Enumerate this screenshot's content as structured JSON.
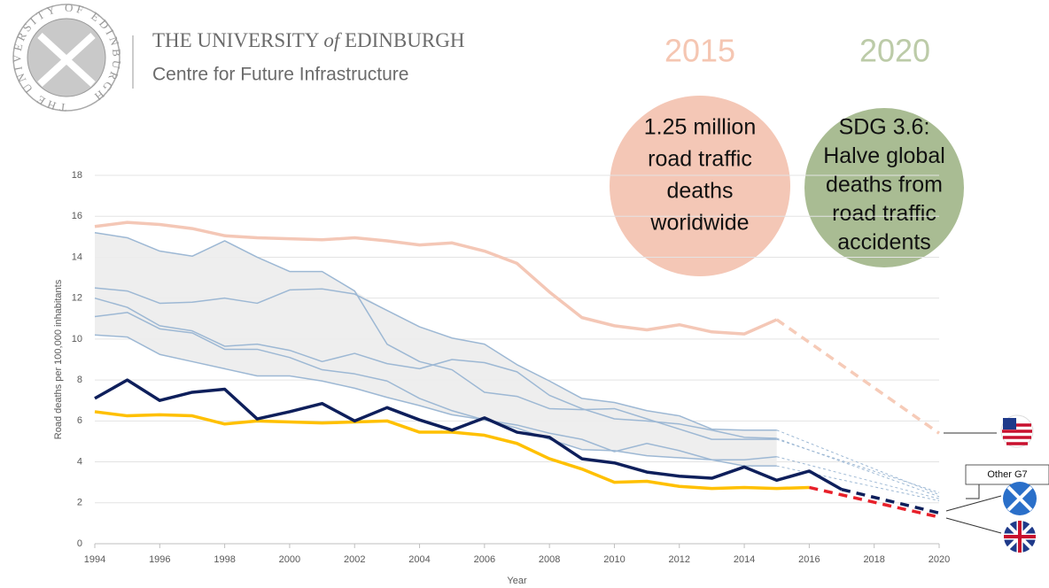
{
  "header": {
    "seal_text": "THE UNIVERSITY OF EDINBURGH",
    "university": [
      "THE UNIVERSITY",
      "of",
      "EDINBURGH"
    ],
    "subtitle": "Centre for Future Infrastructure"
  },
  "bubbles": [
    {
      "year": "2015",
      "lines": [
        "1.25 million",
        "road traffic",
        "deaths",
        "worldwide"
      ],
      "color": "#f4c7b6",
      "year_color": "#f5c6b2"
    },
    {
      "year": "2020",
      "lines": [
        "SDG 3.6:",
        "Halve global",
        "deaths from",
        "road traffic",
        "accidents"
      ],
      "color": "#a9bc93",
      "year_color": "#bccba8"
    }
  ],
  "chart_data": {
    "type": "line",
    "x_label": "Year",
    "y_label": "Road deaths per 100,000 inhabitants",
    "x": [
      1994,
      1995,
      1996,
      1997,
      1998,
      1999,
      2000,
      2001,
      2002,
      2003,
      2004,
      2005,
      2006,
      2007,
      2008,
      2009,
      2010,
      2011,
      2012,
      2013,
      2014,
      2015,
      2016,
      2017,
      2018,
      2019,
      2020
    ],
    "xlim": [
      1994,
      2020
    ],
    "xticks": [
      1994,
      1996,
      1998,
      2000,
      2002,
      2004,
      2006,
      2008,
      2010,
      2012,
      2014,
      2016,
      2018,
      2020
    ],
    "ylim": [
      0,
      18
    ],
    "yticks": [
      0,
      2,
      4,
      6,
      8,
      10,
      12,
      14,
      16,
      18
    ],
    "grid": true,
    "annotation": "Other G7",
    "series": [
      {
        "color": "#9db8d4",
        "band": true,
        "values": [
          15.2,
          14.95,
          14.3,
          14.05,
          14.8,
          14.0,
          13.3,
          13.3,
          12.35,
          9.75,
          8.9,
          8.5,
          7.4,
          7.2,
          6.6,
          6.55,
          6.6,
          6.1,
          5.6,
          5.1,
          5.1,
          5.1,
          null,
          null,
          null,
          null,
          null
        ],
        "projection": {
          "x": [
            2015,
            2020
          ],
          "values": [
            5.1,
            2.5
          ],
          "color": "#9db8d4",
          "style": "dotted"
        }
      },
      {
        "color": "#9db8d4",
        "band": true,
        "values": [
          12.5,
          12.35,
          11.75,
          11.8,
          12.0,
          11.75,
          12.4,
          12.45,
          12.2,
          11.4,
          10.6,
          10.05,
          9.75,
          8.75,
          7.95,
          7.1,
          6.9,
          6.5,
          6.25,
          5.6,
          5.55,
          5.55,
          null,
          null,
          null,
          null,
          null
        ],
        "projection": {
          "x": [
            2015,
            2020
          ],
          "values": [
            5.55,
            2.4
          ],
          "color": "#9db8d4",
          "style": "dotted"
        }
      },
      {
        "color": "#9db8d4",
        "band": true,
        "values": [
          12.0,
          11.55,
          10.65,
          10.4,
          9.65,
          9.75,
          9.45,
          8.9,
          9.3,
          8.8,
          8.55,
          9.0,
          8.85,
          8.4,
          7.25,
          6.6,
          6.1,
          6.0,
          5.85,
          5.55,
          5.2,
          5.15,
          null,
          null,
          null,
          null,
          null
        ],
        "projection": {
          "x": [
            2015,
            2020
          ],
          "values": [
            5.15,
            2.3
          ],
          "color": "#9db8d4",
          "style": "dotted"
        }
      },
      {
        "color": "#9db8d4",
        "band": true,
        "values": [
          11.1,
          11.3,
          10.5,
          10.3,
          9.5,
          9.5,
          9.1,
          8.5,
          8.3,
          7.95,
          7.1,
          6.5,
          6.05,
          5.8,
          5.4,
          5.1,
          4.5,
          4.9,
          4.55,
          4.1,
          4.1,
          4.25,
          null,
          null,
          null,
          null,
          null
        ],
        "projection": {
          "x": [
            2015,
            2020
          ],
          "values": [
            4.25,
            2.2
          ],
          "color": "#9db8d4",
          "style": "dotted"
        }
      },
      {
        "color": "#9db8d4",
        "band": true,
        "values": [
          10.2,
          10.1,
          9.25,
          8.9,
          8.55,
          8.2,
          8.2,
          7.95,
          7.6,
          7.15,
          6.75,
          6.3,
          6.05,
          5.65,
          5.1,
          4.6,
          4.55,
          4.3,
          4.2,
          4.1,
          3.8,
          3.8,
          null,
          null,
          null,
          null,
          null
        ],
        "projection": {
          "x": [
            2015,
            2020
          ],
          "values": [
            3.8,
            2.1
          ],
          "color": "#9db8d4",
          "style": "dotted"
        }
      },
      {
        "color": "#f4c7b6",
        "values": [
          15.5,
          15.7,
          15.6,
          15.4,
          15.05,
          14.95,
          14.9,
          14.85,
          14.95,
          14.8,
          14.6,
          14.7,
          14.3,
          13.7,
          12.3,
          11.05,
          10.65,
          10.45,
          10.7,
          10.35,
          10.25,
          10.95,
          null,
          null,
          null,
          null,
          null
        ],
        "projection": {
          "x": [
            2015,
            2020
          ],
          "values": [
            10.95,
            5.4
          ],
          "color": "#f6cbb8",
          "style": "dashed"
        }
      },
      {
        "color": "#ffc000",
        "values": [
          6.45,
          6.25,
          6.3,
          6.25,
          5.85,
          6.0,
          5.95,
          5.9,
          5.95,
          6.0,
          5.45,
          5.45,
          5.3,
          4.9,
          4.15,
          3.65,
          3.0,
          3.05,
          2.8,
          2.7,
          2.75,
          2.7,
          2.75,
          null,
          null,
          null,
          null
        ],
        "projection": {
          "x": [
            2016,
            2020
          ],
          "values": [
            2.75,
            1.3
          ],
          "color": "#e8202a",
          "style": "dashed"
        }
      },
      {
        "color": "#0e1f5b",
        "values": [
          7.1,
          8.0,
          7.0,
          7.4,
          7.55,
          6.1,
          6.45,
          6.85,
          6.0,
          6.65,
          6.05,
          5.55,
          6.15,
          5.45,
          5.2,
          4.15,
          3.95,
          3.5,
          3.3,
          3.2,
          3.75,
          3.1,
          3.55,
          2.65,
          null,
          null,
          null
        ],
        "projection": {
          "x": [
            2017,
            2020
          ],
          "values": [
            2.65,
            1.5
          ],
          "color": "#0e1f5b",
          "style": "dashed"
        }
      }
    ]
  }
}
